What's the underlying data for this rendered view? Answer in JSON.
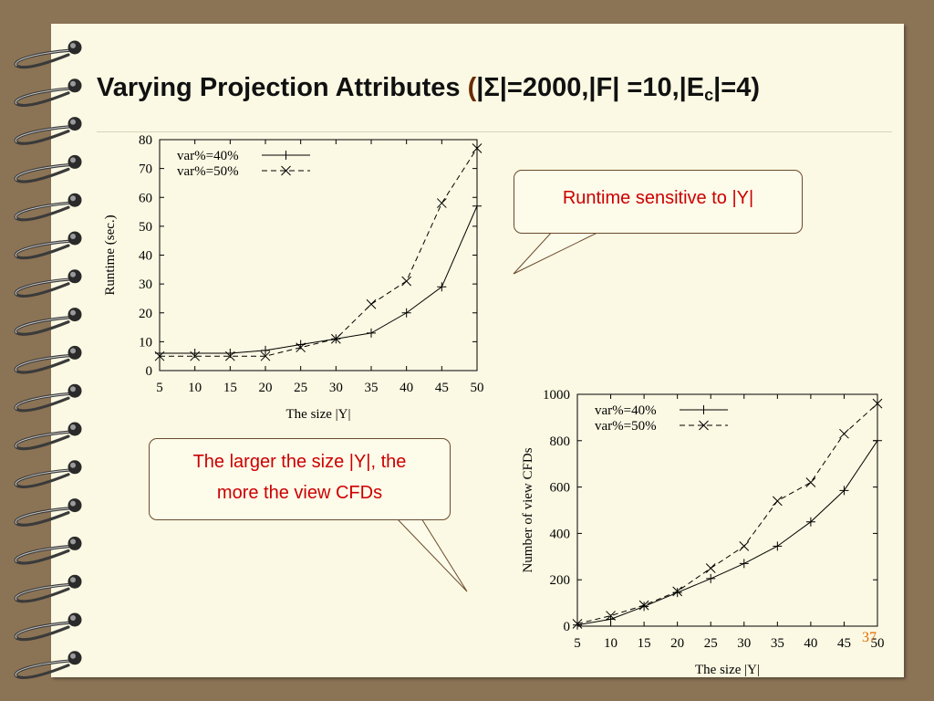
{
  "slide": {
    "title_main": "Varying Projection Attributes ",
    "title_open": "(",
    "title_params_1": "|Σ|=2000,|F| =10,|E",
    "title_sub": "c",
    "title_params_2": "|=4)",
    "page_number": "37"
  },
  "callouts": {
    "top": "Runtime sensitive to |Y|",
    "bottom_line1": "The larger the size |Y|, the",
    "bottom_line2": "more the view CFDs"
  },
  "chart_data": [
    {
      "type": "line",
      "xlabel": "The size |Y|",
      "ylabel": "Runtime (sec.)",
      "x": [
        5,
        10,
        15,
        20,
        25,
        30,
        35,
        40,
        45,
        50
      ],
      "xlim": [
        5,
        50
      ],
      "ylim": [
        0,
        80
      ],
      "xticks": [
        5,
        10,
        15,
        20,
        25,
        30,
        35,
        40,
        45,
        50
      ],
      "yticks": [
        0,
        10,
        20,
        30,
        40,
        50,
        60,
        70,
        80
      ],
      "legend": "top-left",
      "series": [
        {
          "name": "var%=40%",
          "marker": "plus",
          "dash": "solid",
          "values": [
            6,
            6,
            6,
            7,
            9,
            11,
            13,
            20,
            29,
            57
          ]
        },
        {
          "name": "var%=50%",
          "marker": "cross",
          "dash": "dashed",
          "values": [
            5,
            5,
            5,
            5,
            8,
            11,
            23,
            31,
            58,
            77
          ]
        }
      ]
    },
    {
      "type": "line",
      "xlabel": "The size |Y|",
      "ylabel": "Number of view CFDs",
      "x": [
        5,
        10,
        15,
        20,
        25,
        30,
        35,
        40,
        45,
        50
      ],
      "xlim": [
        5,
        50
      ],
      "ylim": [
        0,
        1000
      ],
      "xticks": [
        5,
        10,
        15,
        20,
        25,
        30,
        35,
        40,
        45,
        50
      ],
      "yticks": [
        0,
        200,
        400,
        600,
        800,
        1000
      ],
      "legend": "top-left",
      "series": [
        {
          "name": "var%=40%",
          "marker": "plus",
          "dash": "solid",
          "values": [
            5,
            30,
            85,
            145,
            205,
            270,
            345,
            450,
            585,
            800
          ]
        },
        {
          "name": "var%=50%",
          "marker": "cross",
          "dash": "dashed",
          "values": [
            10,
            45,
            90,
            150,
            250,
            345,
            540,
            620,
            830,
            960
          ]
        }
      ]
    }
  ]
}
